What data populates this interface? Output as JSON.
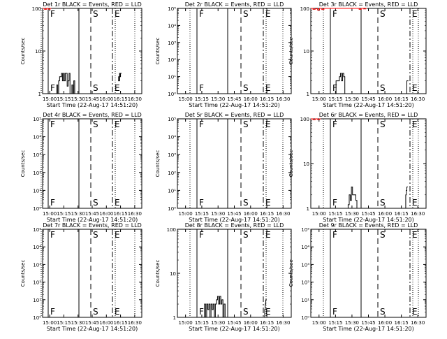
{
  "x_ticks": [
    "15:00",
    "15:15",
    "15:30",
    "15:45",
    "16:00",
    "16:15",
    "16:30"
  ],
  "x_label": "Start Time (22-Aug-17 14:51:20)",
  "ylabel": "Counts/sec",
  "chart_data": [
    {
      "type": "line",
      "title": "Det 1r BLACK = Events, RED = LLD",
      "ylabel": "Counts/sec",
      "xlabel": "Start Time (22-Aug-17 14:51:20)",
      "y_scale": "log",
      "ylim": [
        1,
        100
      ],
      "y_ticks": [
        {
          "v": 1,
          "label": "1"
        },
        {
          "v": 10,
          "label": "10"
        },
        {
          "v": 100,
          "label": "100"
        }
      ],
      "x_ticks": [
        "15:00",
        "15:15",
        "15:30",
        "15:45",
        "16:00",
        "16:15",
        "16:30"
      ],
      "xlim_minutes": [
        0,
        105
      ],
      "markers": [
        {
          "label": "F",
          "style": "solid"
        },
        {
          "label": "S",
          "style": "dashed"
        },
        {
          "label": "E",
          "style": "dashdot"
        }
      ],
      "events": [
        [
          9,
          1
        ],
        [
          10,
          1
        ],
        [
          12,
          1
        ],
        [
          14,
          1
        ],
        [
          15,
          1.6
        ],
        [
          16,
          1
        ],
        [
          17,
          2
        ],
        [
          18,
          2.5
        ],
        [
          19,
          2.5
        ],
        [
          20,
          3
        ],
        [
          21,
          2
        ],
        [
          22,
          3
        ],
        [
          23,
          2
        ],
        [
          24,
          3
        ],
        [
          25,
          3
        ],
        [
          26,
          1.5
        ],
        [
          27,
          2
        ],
        [
          28,
          3
        ],
        [
          29,
          1
        ],
        [
          30,
          1
        ],
        [
          31,
          1.6
        ],
        [
          32,
          1
        ],
        [
          33,
          2
        ],
        [
          34,
          1
        ],
        [
          35,
          1
        ]
      ],
      "events2": [
        [
          80,
          2
        ],
        [
          80.5,
          2.5
        ],
        [
          81,
          2
        ],
        [
          81.5,
          3
        ],
        [
          82,
          2.5
        ],
        [
          82.5,
          3
        ]
      ],
      "lld": [
        [
          0,
          100
        ],
        [
          2,
          95
        ],
        [
          4,
          100
        ],
        [
          6,
          96
        ],
        [
          8,
          100
        ]
      ]
    },
    {
      "type": "line",
      "title": "Det 2r BLACK = Events, RED = LLD",
      "ylabel": "Counts/sec",
      "xlabel": "Start Time (22-Aug-17 14:51:20)",
      "y_scale": "log",
      "ylim": [
        1,
        100000
      ],
      "y_ticks": [
        {
          "v": 1,
          "label": "10⁰"
        },
        {
          "v": 10,
          "label": "10¹"
        },
        {
          "v": 100,
          "label": "10²"
        },
        {
          "v": 1000,
          "label": "10³"
        },
        {
          "v": 10000,
          "label": "10⁴"
        },
        {
          "v": 100000,
          "label": "10⁵"
        }
      ],
      "x_ticks": [
        "15:00",
        "15:15",
        "15:30",
        "15:45",
        "16:00",
        "16:15",
        "16:30"
      ],
      "xlim_minutes": [
        0,
        105
      ],
      "markers": [
        {
          "label": "F",
          "style": "solid"
        },
        {
          "label": "S",
          "style": "dashed"
        },
        {
          "label": "E",
          "style": "dashdot"
        }
      ],
      "events": [],
      "events2": [],
      "lld": []
    },
    {
      "type": "line",
      "title": "Det 3r BLACK = Events, RED = LLD",
      "ylabel": "Counts/sec",
      "xlabel": "Start Time (22-Aug-17 14:51:20)",
      "y_scale": "log",
      "ylim": [
        1,
        100
      ],
      "y_ticks": [
        {
          "v": 1,
          "label": "1"
        },
        {
          "v": 10,
          "label": "10"
        },
        {
          "v": 100,
          "label": "100"
        }
      ],
      "x_ticks": [
        "15:00",
        "15:15",
        "15:30",
        "15:45",
        "16:00",
        "16:15",
        "16:30"
      ],
      "xlim_minutes": [
        0,
        105
      ],
      "markers": [
        {
          "label": "F",
          "style": "solid"
        },
        {
          "label": "S",
          "style": "dashed"
        },
        {
          "label": "E",
          "style": "dashdot"
        }
      ],
      "events": [
        [
          22,
          1
        ],
        [
          23,
          2
        ],
        [
          24,
          2
        ],
        [
          25,
          2
        ],
        [
          26,
          2.5
        ],
        [
          27,
          3
        ],
        [
          28,
          2
        ],
        [
          29,
          3
        ],
        [
          30,
          2.5
        ],
        [
          31,
          1
        ]
      ],
      "events2": [
        [
          87,
          1
        ],
        [
          87.5,
          2
        ],
        [
          88,
          2
        ]
      ],
      "lld": [
        [
          0,
          100
        ],
        [
          2,
          95
        ],
        [
          4,
          98
        ],
        [
          6,
          92
        ],
        [
          8,
          100
        ],
        [
          10,
          94
        ],
        [
          12,
          100
        ],
        [
          42,
          100
        ],
        [
          44,
          95
        ],
        [
          46,
          100
        ],
        [
          48,
          97
        ],
        [
          50,
          100
        ]
      ]
    },
    {
      "type": "line",
      "title": "Det 4r BLACK = Events, RED = LLD",
      "ylabel": "Counts/sec",
      "xlabel": "Start Time (22-Aug-17 14:51:20)",
      "y_scale": "log",
      "ylim": [
        1,
        100000
      ],
      "y_ticks": [
        {
          "v": 1,
          "label": "10⁰"
        },
        {
          "v": 10,
          "label": "10¹"
        },
        {
          "v": 100,
          "label": "10²"
        },
        {
          "v": 1000,
          "label": "10³"
        },
        {
          "v": 10000,
          "label": "10⁴"
        },
        {
          "v": 100000,
          "label": "10⁵"
        }
      ],
      "x_ticks": [
        "15:00",
        "15:15",
        "15:30",
        "15:45",
        "16:00",
        "16:15",
        "16:30"
      ],
      "xlim_minutes": [
        0,
        105
      ],
      "markers": [
        {
          "label": "F",
          "style": "solid"
        },
        {
          "label": "S",
          "style": "dashed"
        },
        {
          "label": "E",
          "style": "dashdot"
        }
      ],
      "events": [],
      "events2": [],
      "lld": []
    },
    {
      "type": "line",
      "title": "Det 5r BLACK = Events, RED = LLD",
      "ylabel": "Counts/sec",
      "xlabel": "Start Time (22-Aug-17 14:51:20)",
      "y_scale": "log",
      "ylim": [
        1,
        100000
      ],
      "y_ticks": [
        {
          "v": 1,
          "label": "10⁰"
        },
        {
          "v": 10,
          "label": "10¹"
        },
        {
          "v": 100,
          "label": "10²"
        },
        {
          "v": 1000,
          "label": "10³"
        },
        {
          "v": 10000,
          "label": "10⁴"
        },
        {
          "v": 100000,
          "label": "10⁵"
        }
      ],
      "x_ticks": [
        "15:00",
        "15:15",
        "15:30",
        "15:45",
        "16:00",
        "16:15",
        "16:30"
      ],
      "xlim_minutes": [
        0,
        105
      ],
      "markers": [
        {
          "label": "F",
          "style": "solid"
        },
        {
          "label": "S",
          "style": "dashed"
        },
        {
          "label": "E",
          "style": "dashdot"
        }
      ],
      "events": [],
      "events2": [],
      "lld": []
    },
    {
      "type": "line",
      "title": "Det 6r BLACK = Events, RED = LLD",
      "ylabel": "Counts/sec",
      "xlabel": "Start Time (22-Aug-17 14:51:20)",
      "y_scale": "log",
      "ylim": [
        1,
        100
      ],
      "y_ticks": [
        {
          "v": 1,
          "label": "1"
        },
        {
          "v": 10,
          "label": "10"
        },
        {
          "v": 100,
          "label": "100"
        }
      ],
      "x_ticks": [
        "15:00",
        "15:15",
        "15:30",
        "15:45",
        "16:00",
        "16:15",
        "16:30"
      ],
      "xlim_minutes": [
        0,
        105
      ],
      "markers": [
        {
          "label": "F",
          "style": "solid"
        },
        {
          "label": "S",
          "style": "dashed"
        },
        {
          "label": "E",
          "style": "dashdot"
        }
      ],
      "events": [
        [
          33,
          1
        ],
        [
          34,
          1.2
        ],
        [
          35,
          2
        ],
        [
          36,
          1.5
        ],
        [
          37,
          3
        ],
        [
          38,
          2
        ],
        [
          39,
          2
        ],
        [
          40,
          2
        ],
        [
          41,
          1.5
        ],
        [
          42,
          1
        ]
      ],
      "events2": [
        [
          86,
          1
        ],
        [
          86.5,
          2
        ],
        [
          87,
          2.5
        ],
        [
          87.5,
          3
        ]
      ],
      "lld": [
        [
          0,
          100
        ],
        [
          2,
          95
        ],
        [
          4,
          100
        ],
        [
          6,
          97
        ],
        [
          8,
          100
        ]
      ]
    },
    {
      "type": "line",
      "title": "Det 7r BLACK = Events, RED = LLD",
      "ylabel": "Counts/sec",
      "xlabel": "Start Time (22-Aug-17 14:51:20)",
      "y_scale": "log",
      "ylim": [
        1,
        100000
      ],
      "y_ticks": [
        {
          "v": 1,
          "label": "10⁰"
        },
        {
          "v": 10,
          "label": "10¹"
        },
        {
          "v": 100,
          "label": "10²"
        },
        {
          "v": 1000,
          "label": "10³"
        },
        {
          "v": 10000,
          "label": "10⁴"
        },
        {
          "v": 100000,
          "label": "10⁵"
        }
      ],
      "x_ticks": [
        "15:00",
        "15:15",
        "15:30",
        "15:45",
        "16:00",
        "16:15",
        "16:30"
      ],
      "xlim_minutes": [
        0,
        105
      ],
      "markers": [
        {
          "label": "F",
          "style": "solid"
        },
        {
          "label": "S",
          "style": "dashed"
        },
        {
          "label": "E",
          "style": "dashdot"
        }
      ],
      "events": [],
      "events2": [],
      "lld": []
    },
    {
      "type": "line",
      "title": "Det 8r BLACK = Events, RED = LLD",
      "ylabel": "Counts/sec",
      "xlabel": "Start Time (22-Aug-17 14:51:20)",
      "y_scale": "log",
      "ylim": [
        1,
        100
      ],
      "y_ticks": [
        {
          "v": 1,
          "label": "1"
        },
        {
          "v": 10,
          "label": "10"
        },
        {
          "v": 100,
          "label": "100"
        }
      ],
      "x_ticks": [
        "15:00",
        "15:15",
        "15:30",
        "15:45",
        "16:00",
        "16:15",
        "16:30"
      ],
      "xlim_minutes": [
        0,
        105
      ],
      "markers": [
        {
          "label": "F",
          "style": "solid"
        },
        {
          "label": "S",
          "style": "dashed"
        },
        {
          "label": "E",
          "style": "dashdot"
        }
      ],
      "events": [
        [
          24,
          1
        ],
        [
          25,
          2
        ],
        [
          26,
          1
        ],
        [
          27,
          2
        ],
        [
          28,
          1.5
        ],
        [
          29,
          2
        ],
        [
          30,
          1
        ],
        [
          31,
          2
        ],
        [
          32,
          1.5
        ],
        [
          33,
          2
        ],
        [
          34,
          1
        ],
        [
          35,
          2
        ],
        [
          36,
          2.5
        ],
        [
          37,
          3
        ],
        [
          38,
          2
        ],
        [
          39,
          3
        ],
        [
          40,
          2
        ],
        [
          41,
          2.5
        ],
        [
          42,
          1
        ],
        [
          43,
          2
        ],
        [
          44,
          1
        ]
      ],
      "events2": [
        [
          80,
          1
        ],
        [
          80.5,
          1.5
        ],
        [
          81,
          2
        ],
        [
          81.5,
          2.5
        ]
      ],
      "lld": []
    },
    {
      "type": "line",
      "title": "Det 9r BLACK = Events, RED = LLD",
      "ylabel": "Counts/sec",
      "xlabel": "Start Time (22-Aug-17 14:51:20)",
      "y_scale": "log",
      "ylim": [
        1,
        100000
      ],
      "y_ticks": [
        {
          "v": 1,
          "label": "10⁰"
        },
        {
          "v": 10,
          "label": "10¹"
        },
        {
          "v": 100,
          "label": "10²"
        },
        {
          "v": 1000,
          "label": "10³"
        },
        {
          "v": 10000,
          "label": "10⁴"
        },
        {
          "v": 100000,
          "label": "10⁵"
        }
      ],
      "x_ticks": [
        "15:00",
        "15:15",
        "15:30",
        "15:45",
        "16:00",
        "16:15",
        "16:30"
      ],
      "xlim_minutes": [
        0,
        105
      ],
      "markers": [
        {
          "label": "F",
          "style": "solid"
        },
        {
          "label": "S",
          "style": "dashed"
        },
        {
          "label": "E",
          "style": "dashdot"
        }
      ],
      "events": [],
      "events2": [],
      "lld": []
    }
  ]
}
